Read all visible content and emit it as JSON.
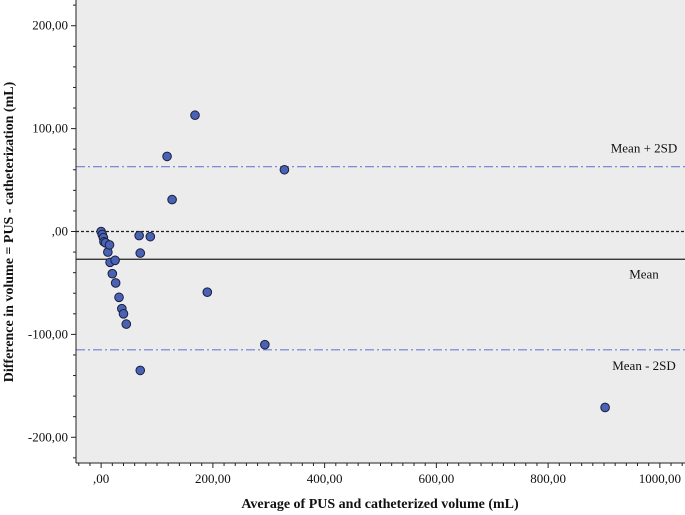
{
  "chart_data": {
    "type": "scatter",
    "xlabel": "Average of PUS and catheterized volume (mL)",
    "ylabel": "Difference in volume = PUS - catheterization (mL)",
    "xlim": [
      -45,
      1045
    ],
    "ylim": [
      -225,
      225
    ],
    "x_ticks": [
      0,
      200,
      400,
      600,
      800,
      1000
    ],
    "x_tick_labels": [
      ",00",
      "200,00",
      "400,00",
      "600,00",
      "800,00",
      "1000,00"
    ],
    "y_ticks": [
      200,
      100,
      0,
      -100,
      -200
    ],
    "y_tick_labels": [
      "200,00",
      "100,00",
      ",00",
      "-100,00",
      "-200,00"
    ],
    "reference_lines": [
      {
        "label": "Mean + 2SD",
        "y": 63,
        "style": "dash-dot",
        "color": "#6f7fd0"
      },
      {
        "label": "",
        "y": 0,
        "style": "dotted",
        "color": "#222222"
      },
      {
        "label": "Mean",
        "y": -27,
        "style": "solid",
        "color": "#222222"
      },
      {
        "label": "Mean - 2SD",
        "y": -115,
        "style": "dash-dot",
        "color": "#6f7fd0"
      }
    ],
    "marker_color": "#4a62b6",
    "background_color": "#ececec",
    "points": [
      {
        "x": 0,
        "y": 0
      },
      {
        "x": 2,
        "y": -3
      },
      {
        "x": 4,
        "y": -6
      },
      {
        "x": 5,
        "y": -10
      },
      {
        "x": 8,
        "y": -11
      },
      {
        "x": 12,
        "y": -20
      },
      {
        "x": 15,
        "y": -13
      },
      {
        "x": 16,
        "y": -30
      },
      {
        "x": 20,
        "y": -41
      },
      {
        "x": 25,
        "y": -28
      },
      {
        "x": 26,
        "y": -50
      },
      {
        "x": 32,
        "y": -64
      },
      {
        "x": 37,
        "y": -75
      },
      {
        "x": 40,
        "y": -80
      },
      {
        "x": 45,
        "y": -90
      },
      {
        "x": 68,
        "y": -4
      },
      {
        "x": 70,
        "y": -21
      },
      {
        "x": 70,
        "y": -135
      },
      {
        "x": 88,
        "y": -5
      },
      {
        "x": 118,
        "y": 73
      },
      {
        "x": 127,
        "y": 31
      },
      {
        "x": 168,
        "y": 113
      },
      {
        "x": 190,
        "y": -59
      },
      {
        "x": 293,
        "y": -110
      },
      {
        "x": 328,
        "y": 60
      },
      {
        "x": 902,
        "y": -171
      }
    ]
  }
}
